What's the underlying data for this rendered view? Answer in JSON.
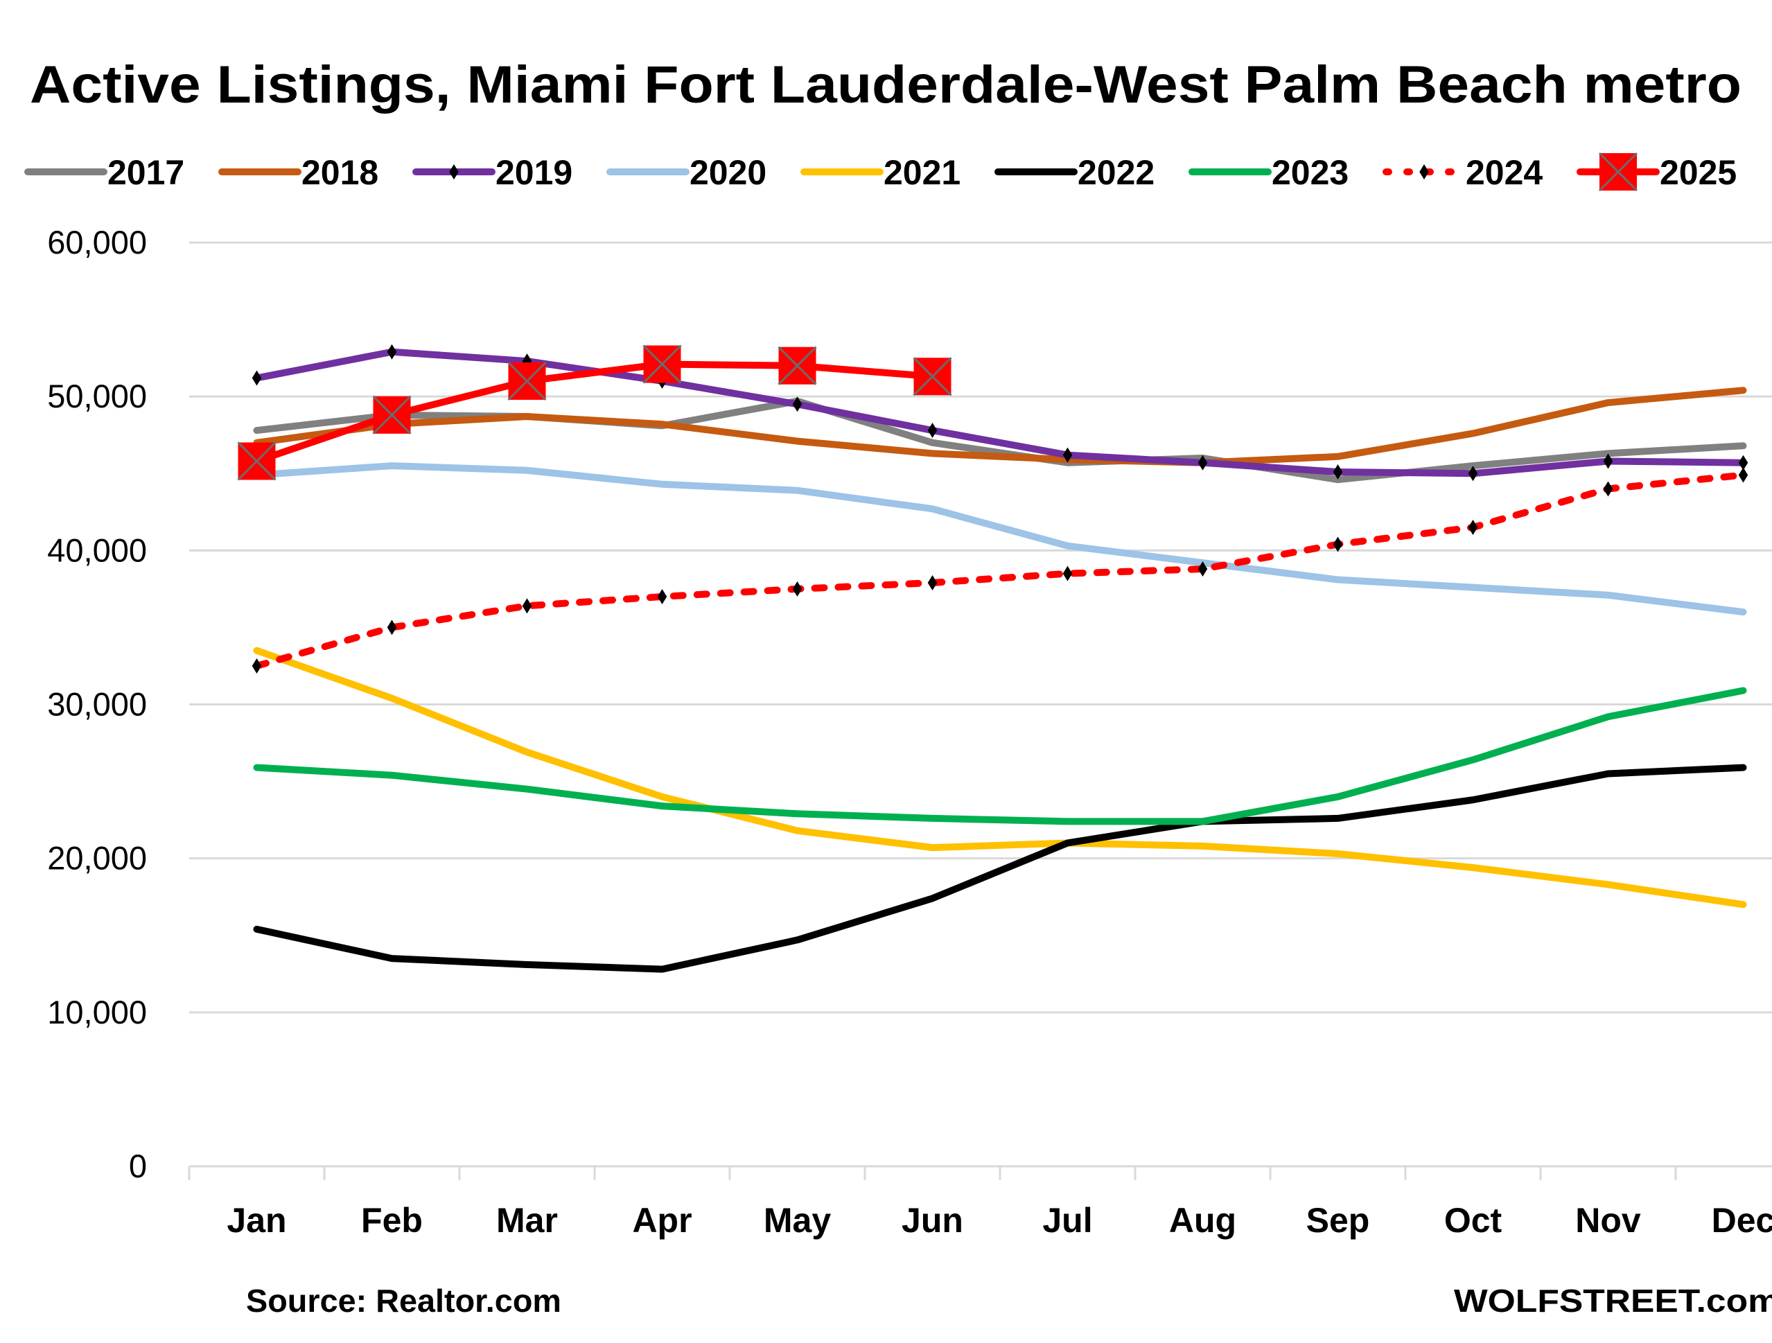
{
  "chart_data": {
    "type": "line",
    "title": "Active Listings, Miami Fort Lauderdale-West Palm Beach metro",
    "xlabel": "",
    "ylabel": "",
    "categories": [
      "Jan",
      "Feb",
      "Mar",
      "Apr",
      "May",
      "Jun",
      "Jul",
      "Aug",
      "Sep",
      "Oct",
      "Nov",
      "Dec"
    ],
    "ylim": [
      0,
      60000
    ],
    "yticks": [
      0,
      10000,
      20000,
      30000,
      40000,
      50000,
      60000
    ],
    "ytick_labels": [
      "0",
      "10,000",
      "20,000",
      "30,000",
      "40,000",
      "50,000",
      "60,000"
    ],
    "grid": true,
    "legend_position": "top",
    "series": [
      {
        "name": "2017",
        "color": "#808080",
        "dash": "solid",
        "marker": "none",
        "values": [
          47800,
          48800,
          48700,
          48100,
          49700,
          47000,
          45700,
          46000,
          44600,
          45500,
          46300,
          46800
        ]
      },
      {
        "name": "2018",
        "color": "#C55A11",
        "dash": "solid",
        "marker": "none",
        "values": [
          47000,
          48200,
          48700,
          48200,
          47100,
          46300,
          45900,
          45700,
          46100,
          47600,
          49600,
          50400
        ]
      },
      {
        "name": "2019",
        "color": "#7030A0",
        "dash": "solid",
        "marker": "diamond",
        "values": [
          51200,
          52900,
          52300,
          51000,
          49500,
          47800,
          46200,
          45700,
          45100,
          45000,
          45800,
          45700
        ]
      },
      {
        "name": "2020",
        "color": "#9DC3E6",
        "dash": "solid",
        "marker": "none",
        "values": [
          44900,
          45500,
          45200,
          44300,
          43900,
          42700,
          40300,
          39200,
          38100,
          37600,
          37100,
          36000
        ]
      },
      {
        "name": "2021",
        "color": "#FFC000",
        "dash": "solid",
        "marker": "none",
        "values": [
          33500,
          30400,
          26900,
          24000,
          21800,
          20700,
          21000,
          20800,
          20300,
          19400,
          18300,
          17000
        ]
      },
      {
        "name": "2022",
        "color": "#000000",
        "dash": "solid",
        "marker": "none",
        "values": [
          15400,
          13500,
          13100,
          12800,
          14700,
          17400,
          21000,
          22400,
          22600,
          23800,
          25500,
          25900
        ]
      },
      {
        "name": "2023",
        "color": "#00B050",
        "dash": "solid",
        "marker": "none",
        "values": [
          25900,
          25400,
          24500,
          23400,
          22900,
          22600,
          22400,
          22400,
          24000,
          26400,
          29200,
          30900
        ]
      },
      {
        "name": "2024",
        "color": "#FF0000",
        "dash": "dotted",
        "marker": "diamond",
        "values": [
          32500,
          35000,
          36400,
          37000,
          37500,
          37900,
          38500,
          38800,
          40400,
          41500,
          44000,
          44900
        ]
      },
      {
        "name": "2025",
        "color": "#FF0000",
        "dash": "solid",
        "marker": "square-x",
        "values": [
          45800,
          48800,
          51000,
          52100,
          52000,
          51300,
          null,
          null,
          null,
          null,
          null,
          null
        ]
      }
    ],
    "annotations": [
      "Source: Realtor.com",
      "WOLFSTREET.com"
    ]
  },
  "footer": {
    "source": "Source: Realtor.com",
    "brand": "WOLFSTREET.com"
  }
}
